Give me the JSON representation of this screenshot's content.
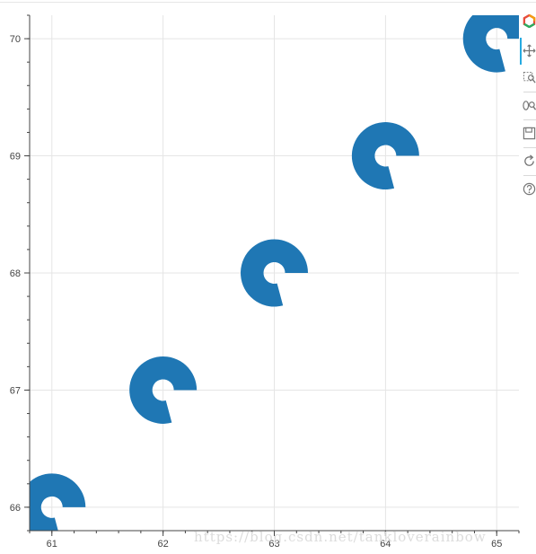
{
  "chart_data": {
    "type": "scatter",
    "marker": "annular-wedge",
    "x": [
      61,
      62,
      63,
      64,
      65
    ],
    "y": [
      66,
      67,
      68,
      69,
      70
    ],
    "xlim": [
      60.8,
      65.2
    ],
    "ylim": [
      65.8,
      70.2
    ],
    "x_ticks": [
      "61",
      "62",
      "63",
      "64",
      "65"
    ],
    "y_ticks": [
      "66",
      "67",
      "68",
      "69",
      "70"
    ],
    "grid": true,
    "color": "#1f77b4"
  },
  "toolbar": {
    "logo_icon": "bokeh-logo-icon",
    "tools": [
      "pan-icon",
      "box-zoom-icon",
      "wheel-zoom-icon",
      "save-icon",
      "reset-icon",
      "help-icon"
    ]
  },
  "watermark": "https://blog.csdn.net/tankloverainbow"
}
